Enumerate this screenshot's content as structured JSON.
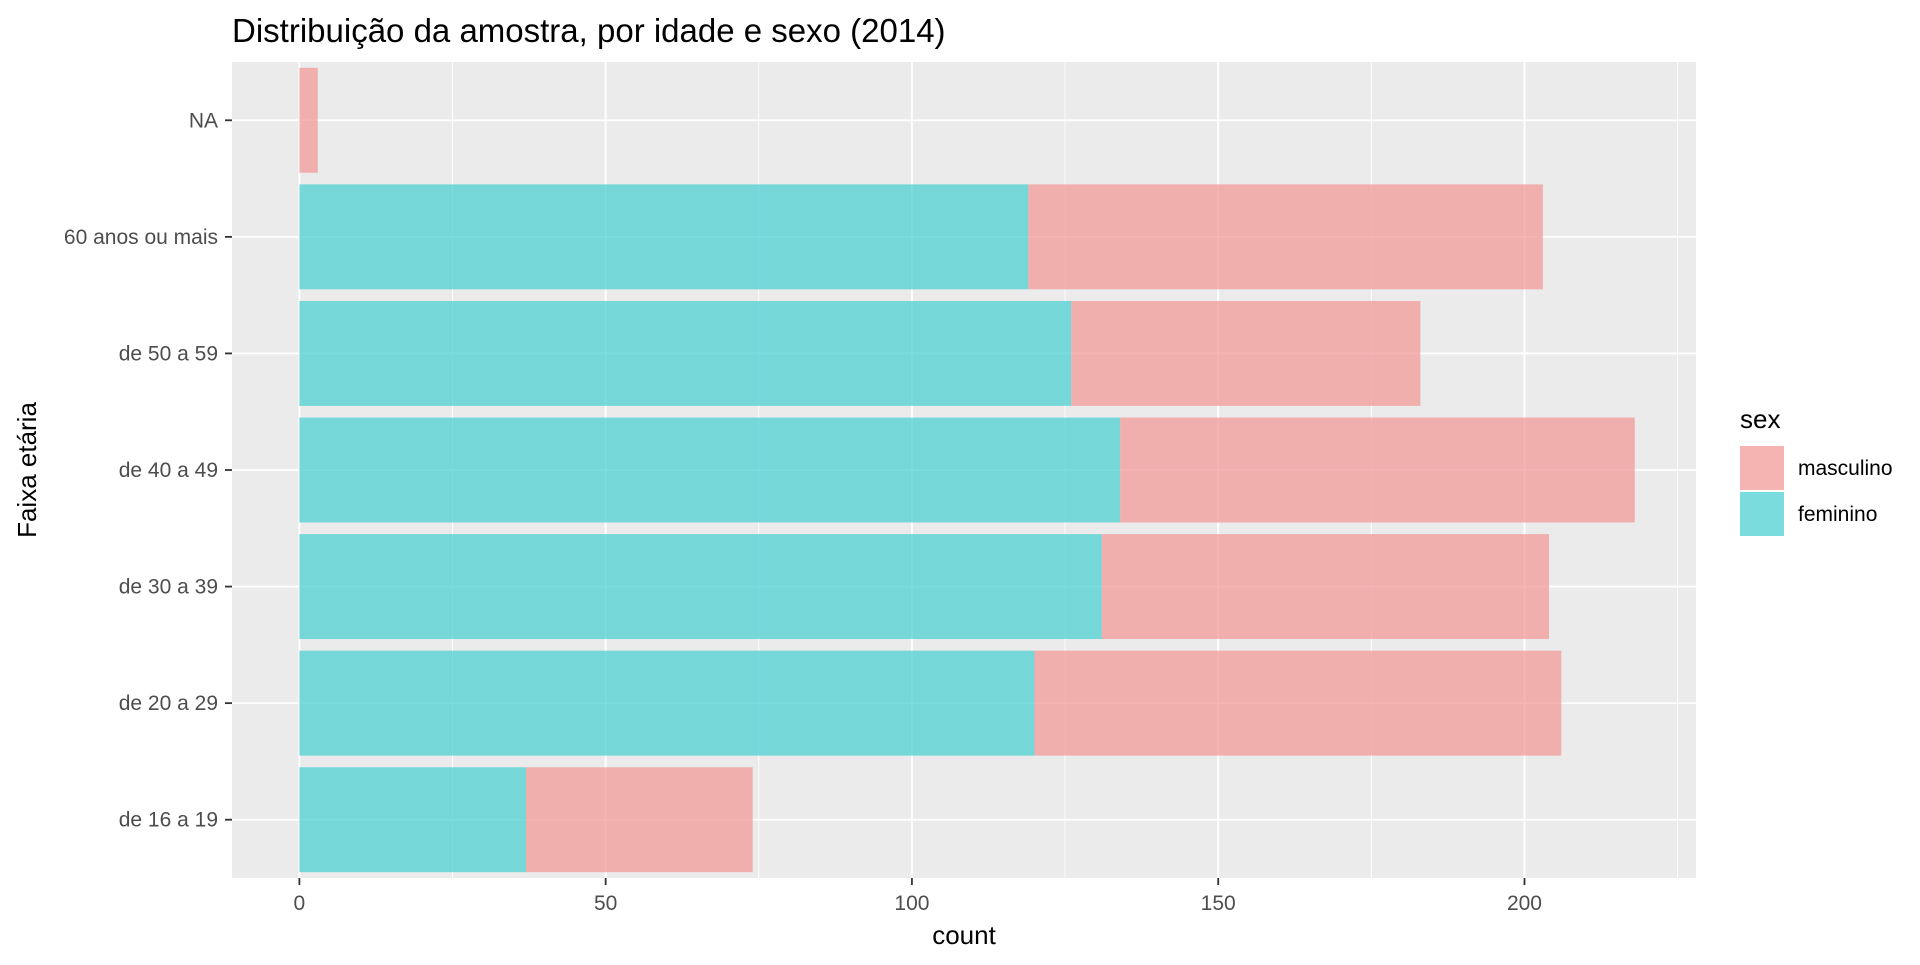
{
  "chart_data": {
    "type": "bar",
    "orientation": "horizontal",
    "stacked": true,
    "title": "Distribuição da amostra, por idade e sexo (2014)",
    "xlabel": "count",
    "ylabel": "Faixa etária",
    "categories": [
      "de 16 a 19",
      "de 20 a 29",
      "de 30 a 39",
      "de 40 a 49",
      "de 50 a 59",
      "60 anos ou mais",
      "NA"
    ],
    "series": [
      {
        "name": "feminino",
        "color": "#4dd0d1",
        "values": [
          37,
          120,
          131,
          134,
          126,
          119,
          0
        ]
      },
      {
        "name": "masculino",
        "color": "#f19a98",
        "values": [
          37,
          86,
          73,
          84,
          57,
          84,
          3
        ]
      }
    ],
    "xlim": [
      -11,
      228
    ],
    "xticks": [
      0,
      50,
      100,
      150,
      200
    ],
    "xtick_labels": [
      "0",
      "50",
      "100",
      "150",
      "200"
    ],
    "grid": true,
    "panel_background": "#ebebeb",
    "bar_opacity": 0.75,
    "legend": {
      "title": "sex",
      "position": "right",
      "entries": [
        {
          "label": "masculino",
          "color": "#f19a98"
        },
        {
          "label": "feminino",
          "color": "#4dd0d1"
        }
      ]
    }
  }
}
